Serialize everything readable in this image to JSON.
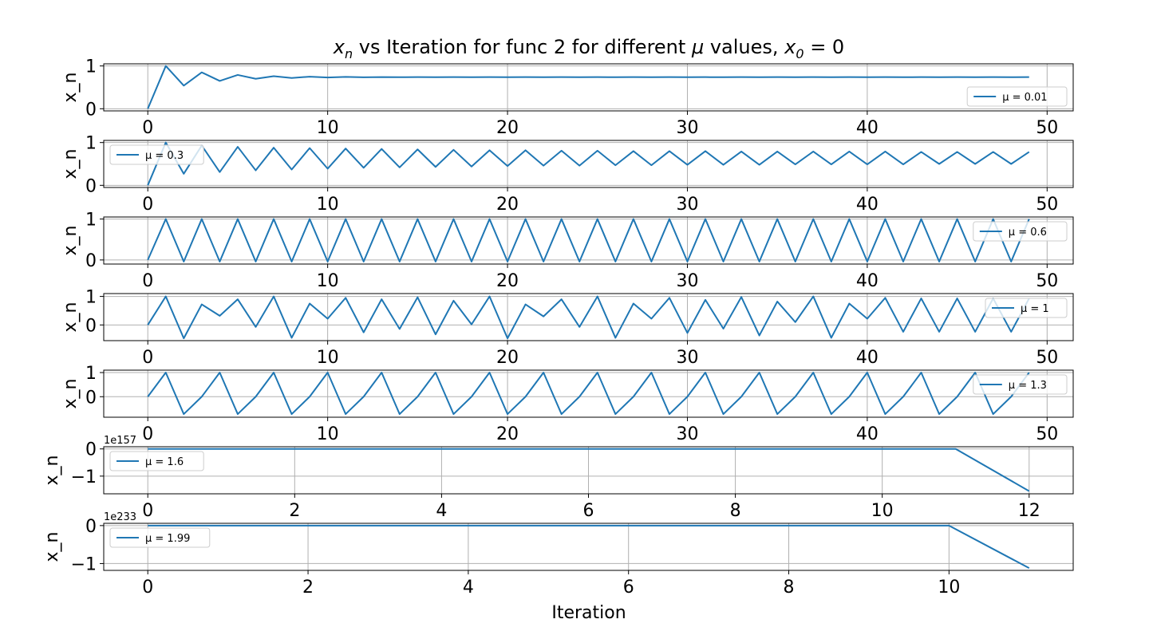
{
  "figure": {
    "title_main": "x",
    "title_sub": "n",
    "title_mid": " vs Iteration for func 2 for different ",
    "title_mu": "μ",
    "title_rest": " values, ",
    "title_x0": "x",
    "title_x0_sub": "0",
    "title_end": " = 0",
    "xlabel": "Iteration"
  },
  "colors": {
    "line": "#1f77b4",
    "grid": "#b0b0b0",
    "axes": "#000000"
  },
  "chart_data": [
    {
      "type": "line",
      "ylabel": "x_n",
      "legend": "μ = 0.01",
      "legend_loc": "lower-right",
      "xlim": [
        -2.45,
        51.45
      ],
      "ylim": [
        -0.05,
        1.05
      ],
      "xticks": [
        0,
        10,
        20,
        30,
        40,
        50
      ],
      "yticks": [
        0,
        1
      ],
      "ytick_labels": [
        "0",
        "1"
      ],
      "offset": "",
      "x": [
        0,
        1,
        2,
        3,
        4,
        5,
        6,
        7,
        8,
        9,
        10,
        11,
        12,
        13,
        14,
        15,
        16,
        17,
        18,
        19,
        20,
        21,
        22,
        23,
        24,
        25,
        26,
        27,
        28,
        29,
        30,
        31,
        32,
        33,
        34,
        35,
        36,
        37,
        38,
        39,
        40,
        41,
        42,
        43,
        44,
        45,
        46,
        47,
        48,
        49
      ],
      "y": [
        0,
        1,
        0.54,
        0.85,
        0.65,
        0.79,
        0.7,
        0.76,
        0.72,
        0.75,
        0.73,
        0.744,
        0.735,
        0.741,
        0.737,
        0.74,
        0.738,
        0.739,
        0.738,
        0.739,
        0.738,
        0.739,
        0.738,
        0.739,
        0.738,
        0.739,
        0.738,
        0.739,
        0.738,
        0.739,
        0.738,
        0.739,
        0.738,
        0.739,
        0.738,
        0.739,
        0.738,
        0.739,
        0.738,
        0.739,
        0.738,
        0.739,
        0.738,
        0.739,
        0.738,
        0.739,
        0.738,
        0.739,
        0.738,
        0.739
      ]
    },
    {
      "type": "line",
      "ylabel": "x_n",
      "legend": "μ = 0.3",
      "legend_loc": "upper-left",
      "xlim": [
        -2.45,
        51.45
      ],
      "ylim": [
        -0.05,
        1.05
      ],
      "xticks": [
        0,
        10,
        20,
        30,
        40,
        50
      ],
      "yticks": [
        0,
        1
      ],
      "ytick_labels": [
        "0",
        "1"
      ],
      "offset": "",
      "x": [
        0,
        1,
        2,
        3,
        4,
        5,
        6,
        7,
        8,
        9,
        10,
        11,
        12,
        13,
        14,
        15,
        16,
        17,
        18,
        19,
        20,
        21,
        22,
        23,
        24,
        25,
        26,
        27,
        28,
        29,
        30,
        31,
        32,
        33,
        34,
        35,
        36,
        37,
        38,
        39,
        40,
        41,
        42,
        43,
        44,
        45,
        46,
        47,
        48,
        49
      ],
      "y": [
        0,
        1,
        0.27,
        0.93,
        0.31,
        0.9,
        0.35,
        0.88,
        0.37,
        0.87,
        0.39,
        0.86,
        0.41,
        0.85,
        0.42,
        0.84,
        0.43,
        0.83,
        0.44,
        0.82,
        0.45,
        0.82,
        0.46,
        0.81,
        0.46,
        0.81,
        0.47,
        0.8,
        0.47,
        0.8,
        0.48,
        0.8,
        0.48,
        0.79,
        0.48,
        0.79,
        0.49,
        0.79,
        0.49,
        0.79,
        0.49,
        0.79,
        0.49,
        0.78,
        0.5,
        0.78,
        0.5,
        0.78,
        0.5,
        0.78
      ]
    },
    {
      "type": "line",
      "ylabel": "x_n",
      "legend": "μ = 0.6",
      "legend_loc": "upper-right",
      "xlim": [
        -2.45,
        51.45
      ],
      "ylim": [
        -0.1,
        1.05
      ],
      "xticks": [
        0,
        10,
        20,
        30,
        40,
        50
      ],
      "yticks": [
        0,
        1
      ],
      "ytick_labels": [
        "0",
        "1"
      ],
      "offset": "",
      "x": [
        0,
        1,
        2,
        3,
        4,
        5,
        6,
        7,
        8,
        9,
        10,
        11,
        12,
        13,
        14,
        15,
        16,
        17,
        18,
        19,
        20,
        21,
        22,
        23,
        24,
        25,
        26,
        27,
        28,
        29,
        30,
        31,
        32,
        33,
        34,
        35,
        36,
        37,
        38,
        39,
        40,
        41,
        42,
        43,
        44,
        45,
        46,
        47,
        48,
        49
      ],
      "y": [
        0,
        1,
        -0.04,
        1,
        -0.04,
        1,
        -0.04,
        1,
        -0.04,
        1,
        -0.04,
        1,
        -0.04,
        1,
        -0.04,
        1,
        -0.04,
        1,
        -0.04,
        1,
        -0.04,
        1,
        -0.04,
        1,
        -0.04,
        1,
        -0.04,
        1,
        -0.04,
        1,
        -0.04,
        1,
        -0.04,
        1,
        -0.04,
        1,
        -0.04,
        1,
        -0.04,
        1,
        -0.04,
        1,
        -0.04,
        1,
        -0.04,
        1,
        -0.04,
        1,
        -0.04,
        1
      ]
    },
    {
      "type": "line",
      "ylabel": "x_n",
      "legend": "μ = 1",
      "legend_loc": "upper-right",
      "xlim": [
        -2.45,
        51.45
      ],
      "ylim": [
        -0.55,
        1.1
      ],
      "xticks": [
        0,
        10,
        20,
        30,
        40,
        50
      ],
      "yticks": [
        0,
        1
      ],
      "ytick_labels": [
        "0",
        "1"
      ],
      "offset": "",
      "x": [
        0,
        1,
        2,
        3,
        4,
        5,
        6,
        7,
        8,
        9,
        10,
        11,
        12,
        13,
        14,
        15,
        16,
        17,
        18,
        19,
        20,
        21,
        22,
        23,
        24,
        25,
        26,
        27,
        28,
        29,
        30,
        31,
        32,
        33,
        34,
        35,
        36,
        37,
        38,
        39,
        40,
        41,
        42,
        43,
        44,
        45,
        46,
        47,
        48,
        49
      ],
      "y": [
        0,
        1,
        -0.47,
        0.72,
        0.32,
        0.9,
        -0.07,
        1,
        -0.45,
        0.75,
        0.22,
        0.95,
        -0.26,
        0.9,
        -0.14,
        0.97,
        -0.33,
        0.85,
        0.02,
        1,
        -0.47,
        0.72,
        0.3,
        0.9,
        -0.07,
        1,
        -0.45,
        0.75,
        0.22,
        0.95,
        -0.28,
        0.88,
        -0.13,
        0.98,
        -0.37,
        0.82,
        0.1,
        1,
        -0.45,
        0.75,
        0.22,
        0.95,
        -0.24,
        0.93,
        -0.24,
        0.93,
        -0.24,
        0.93,
        -0.24,
        0.93
      ]
    },
    {
      "type": "line",
      "ylabel": "x_n",
      "legend": "μ = 1.3",
      "legend_loc": "upper-right",
      "xlim": [
        -2.45,
        51.45
      ],
      "ylim": [
        -0.85,
        1.1
      ],
      "xticks": [
        0,
        10,
        20,
        30,
        40,
        50
      ],
      "yticks": [
        0,
        1
      ],
      "ytick_labels": [
        "0",
        "1"
      ],
      "offset": "",
      "x": [
        0,
        1,
        2,
        3,
        4,
        5,
        6,
        7,
        8,
        9,
        10,
        11,
        12,
        13,
        14,
        15,
        16,
        17,
        18,
        19,
        20,
        21,
        22,
        23,
        24,
        25,
        26,
        27,
        28,
        29,
        30,
        31,
        32,
        33,
        34,
        35,
        36,
        37,
        38,
        39,
        40,
        41,
        42,
        43,
        44,
        45,
        46,
        47,
        48,
        49
      ],
      "y": [
        0,
        1,
        -0.72,
        0,
        1,
        -0.72,
        0,
        1,
        -0.72,
        0,
        1,
        -0.72,
        0,
        1,
        -0.72,
        0,
        1,
        -0.72,
        0,
        1,
        -0.72,
        0,
        1,
        -0.72,
        0,
        1,
        -0.72,
        0,
        1,
        -0.72,
        0,
        1,
        -0.72,
        0,
        1,
        -0.72,
        0,
        1,
        -0.72,
        0,
        1,
        -0.72,
        0,
        1,
        -0.72,
        0,
        1,
        -0.72,
        0,
        1
      ]
    },
    {
      "type": "line",
      "ylabel": "x_n",
      "legend": "μ = 1.6",
      "legend_loc": "upper-left",
      "xlim": [
        -0.6,
        12.6
      ],
      "ylim": [
        -1.65,
        0.08
      ],
      "xticks": [
        0,
        2,
        4,
        6,
        8,
        10,
        12
      ],
      "yticks": [
        0,
        -1
      ],
      "ytick_labels": [
        "0",
        "−1"
      ],
      "offset": "1e157",
      "x": [
        0,
        1,
        2,
        3,
        4,
        5,
        6,
        7,
        8,
        9,
        10,
        11,
        12
      ],
      "y": [
        0,
        0,
        0,
        0,
        0,
        0,
        0,
        0,
        0,
        0,
        0,
        0,
        -1.55
      ]
    },
    {
      "type": "line",
      "ylabel": "x_n",
      "legend": "μ = 1.99",
      "legend_loc": "upper-left",
      "xlim": [
        -0.55,
        11.55
      ],
      "ylim": [
        -1.18,
        0.06
      ],
      "xticks": [
        0,
        2,
        4,
        6,
        8,
        10
      ],
      "yticks": [
        0,
        -1
      ],
      "ytick_labels": [
        "0",
        "−1"
      ],
      "offset": "1e233",
      "x": [
        0,
        1,
        2,
        3,
        4,
        5,
        6,
        7,
        8,
        9,
        10,
        11
      ],
      "y": [
        0,
        0,
        0,
        0,
        0,
        0,
        0,
        0,
        0,
        0,
        0,
        -1.12
      ]
    }
  ]
}
